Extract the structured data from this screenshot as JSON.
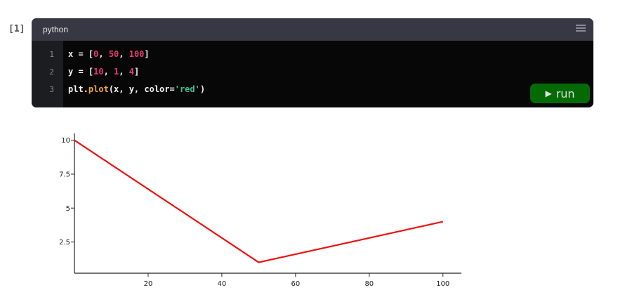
{
  "cell": {
    "prompt": "[1]",
    "language": "python",
    "lines": [
      {
        "no": "1"
      },
      {
        "no": "2"
      },
      {
        "no": "3"
      }
    ],
    "code": {
      "l1_a": "x = [",
      "l1_n1": "0",
      "l1_s1": ", ",
      "l1_n2": "50",
      "l1_s2": ", ",
      "l1_n3": "100",
      "l1_e": "]",
      "l2_a": "y = [",
      "l2_n1": "10",
      "l2_s1": ", ",
      "l2_n2": "1",
      "l2_s2": ", ",
      "l2_n3": "4",
      "l2_e": "]",
      "l3_a": "plt.",
      "l3_fn": "plot",
      "l3_b": "(x, y, color=",
      "l3_str": "'red'",
      "l3_e": ")"
    },
    "run_label": "run",
    "run_icon": "play-icon"
  },
  "chart_data": {
    "type": "line",
    "x": [
      0,
      50,
      100
    ],
    "series": [
      {
        "values": [
          10,
          1,
          4
        ],
        "color": "#ee1111"
      }
    ],
    "xticks": [
      "20",
      "40",
      "60",
      "80",
      "100"
    ],
    "yticks": [
      "2.5",
      "5",
      "7.5",
      "10"
    ],
    "xlim": [
      0,
      105
    ],
    "ylim": [
      0.2,
      10.5
    ],
    "grid": false,
    "title": "",
    "xlabel": "",
    "ylabel": ""
  }
}
